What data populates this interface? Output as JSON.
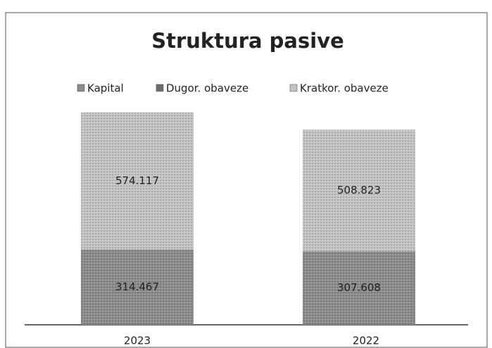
{
  "chart_data": {
    "type": "stacked_bar",
    "title": "Struktura pasive",
    "categories": [
      "2023",
      "2022"
    ],
    "series": [
      {
        "name": "Kapital",
        "color": "#8c8c8c",
        "values": [
          314.467,
          307.608
        ]
      },
      {
        "name": "Dugor. obaveze",
        "color": "#6e6e6e",
        "values": [
          0,
          0
        ]
      },
      {
        "name": "Kratkor. obaveze",
        "color": "#c4c4c4",
        "values": [
          574.117,
          508.823
        ]
      }
    ]
  }
}
